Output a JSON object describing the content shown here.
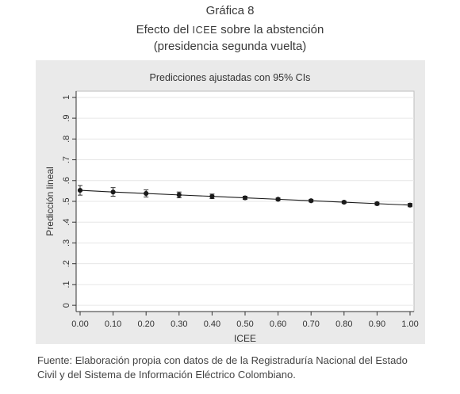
{
  "header": {
    "title": "Gráfica 8",
    "subtitle_pre": "Efecto del ",
    "subtitle_abbr": "ICEE",
    "subtitle_post": " sobre la abstención",
    "subtitle_line2": "(presidencia segunda vuelta)"
  },
  "chart_data": {
    "type": "line",
    "title": "Predicciones ajustadas con 95% CIs",
    "xlabel": "ICEE",
    "ylabel": "Predicción lineal",
    "x": [
      0.0,
      0.1,
      0.2,
      0.3,
      0.4,
      0.5,
      0.6,
      0.7,
      0.8,
      0.9,
      1.0
    ],
    "xtick_labels": [
      "0.00",
      "0.10",
      "0.20",
      "0.30",
      "0.40",
      "0.50",
      "0.60",
      "0.70",
      "0.80",
      "0.90",
      "1.00"
    ],
    "ytick_values": [
      0,
      0.1,
      0.2,
      0.3,
      0.4,
      0.5,
      0.6,
      0.7,
      0.8,
      0.9,
      1
    ],
    "ytick_labels": [
      "0",
      ".1",
      ".2",
      ".3",
      ".4",
      ".5",
      ".6",
      ".7",
      ".8",
      ".9",
      "1"
    ],
    "ylim": [
      0,
      1
    ],
    "xlim": [
      0,
      1
    ],
    "grid": true,
    "series": [
      {
        "y": [
          0.553,
          0.545,
          0.538,
          0.531,
          0.524,
          0.517,
          0.51,
          0.503,
          0.496,
          0.489,
          0.482
        ],
        "ci_low": [
          0.53,
          0.525,
          0.521,
          0.517,
          0.513,
          0.509,
          0.504,
          0.497,
          0.49,
          0.482,
          0.474
        ],
        "ci_high": [
          0.576,
          0.566,
          0.555,
          0.545,
          0.535,
          0.525,
          0.516,
          0.509,
          0.502,
          0.496,
          0.49
        ],
        "color": "#1a1a1a"
      }
    ]
  },
  "source": {
    "line1": "Fuente: Elaboración propia con datos de de la Registraduría Nacional del Estado",
    "line2": "Civil y del Sistema de Información Eléctrico Colombiano."
  }
}
